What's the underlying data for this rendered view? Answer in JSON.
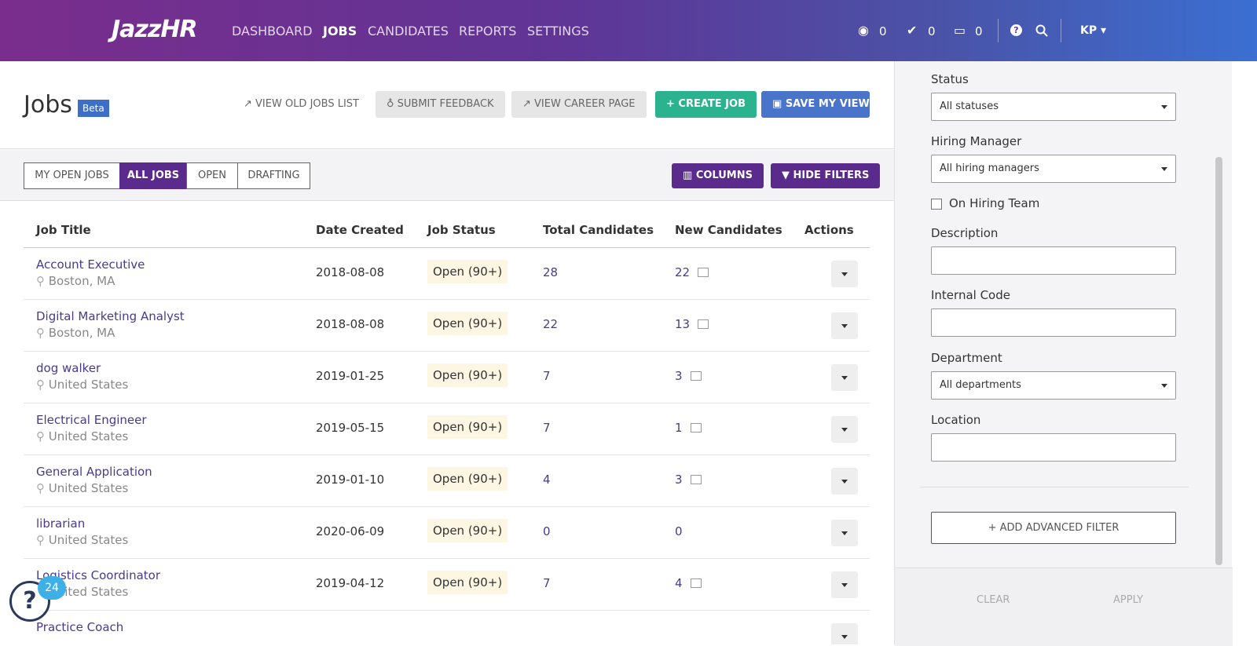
{
  "nav": {
    "logo": "JazzHR",
    "items": [
      "DASHBOARD",
      "JOBS",
      "CANDIDATES",
      "REPORTS",
      "SETTINGS"
    ],
    "active": 1,
    "counters": [
      "0",
      "0",
      "0"
    ],
    "user": "KP"
  },
  "header": {
    "title": "Jobs",
    "badge": "Beta",
    "links": [
      "VIEW OLD JOBS LIST",
      "SUBMIT FEEDBACK",
      "VIEW CAREER PAGE"
    ],
    "create": "CREATE JOB",
    "save": "SAVE MY VIEW"
  },
  "toolbar": {
    "tabs": [
      "MY OPEN JOBS",
      "ALL JOBS",
      "OPEN",
      "DRAFTING"
    ],
    "active": 1,
    "columns": "COLUMNS",
    "hide_filters": "HIDE FILTERS"
  },
  "table": {
    "columns": [
      "Job Title",
      "Date Created",
      "Job Status",
      "Total Candidates",
      "New Candidates",
      "Actions"
    ],
    "rows": [
      {
        "title": "Account Executive",
        "location": "Boston, MA",
        "date": "2018-08-08",
        "status": "Open (90+)",
        "total": "28",
        "new": "22"
      },
      {
        "title": "Digital Marketing Analyst",
        "location": "Boston, MA",
        "date": "2018-08-08",
        "status": "Open (90+)",
        "total": "22",
        "new": "13"
      },
      {
        "title": "dog walker",
        "location": "United States",
        "date": "2019-01-25",
        "status": "Open (90+)",
        "total": "7",
        "new": "3"
      },
      {
        "title": "Electrical Engineer",
        "location": "United States",
        "date": "2019-05-15",
        "status": "Open (90+)",
        "total": "7",
        "new": "1"
      },
      {
        "title": "General Application",
        "location": "United States",
        "date": "2019-01-10",
        "status": "Open (90+)",
        "total": "4",
        "new": "3"
      },
      {
        "title": "librarian",
        "location": "United States",
        "date": "2020-06-09",
        "status": "Open (90+)",
        "total": "0",
        "new": "0"
      },
      {
        "title": "Logistics Coordinator",
        "location": "United States",
        "date": "2019-04-12",
        "status": "Open (90+)",
        "total": "7",
        "new": "4"
      },
      {
        "title": "Practice Coach"
      }
    ]
  },
  "filters": {
    "status_label": "Status",
    "status_value": "All statuses",
    "manager_label": "Hiring Manager",
    "manager_value": "All hiring managers",
    "hiring_team": "On Hiring Team",
    "description_label": "Description",
    "code_label": "Internal Code",
    "department_label": "Department",
    "department_value": "All departments",
    "location_label": "Location",
    "advanced": "ADD ADVANCED FILTER",
    "clear": "CLEAR",
    "apply": "APPLY"
  },
  "help": {
    "badge": "24"
  }
}
